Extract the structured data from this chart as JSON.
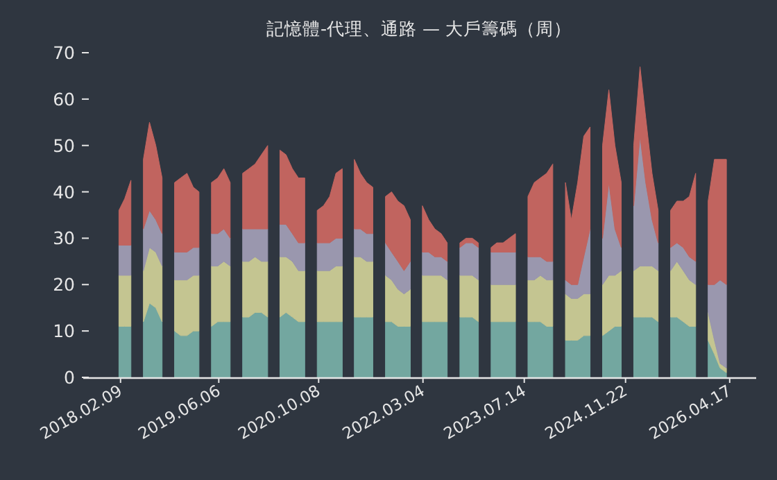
{
  "chart_data": {
    "type": "area",
    "stacked": true,
    "title": "記憶體-代理、通路 — 大戶籌碼（周）",
    "x": [
      "2018-02",
      "2018-03",
      "2018-04",
      "2018-05",
      "2018-06",
      "2018-07",
      "2018-08",
      "2018-09",
      "2018-10",
      "2018-11",
      "2018-12",
      "2019-01",
      "2019-02",
      "2019-03",
      "2019-04",
      "2019-05",
      "2019-06",
      "2019-07",
      "2019-08",
      "2019-09",
      "2019-10",
      "2019-11",
      "2019-12",
      "2020-01",
      "2020-02",
      "2020-03",
      "2020-04",
      "2020-05",
      "2020-06",
      "2020-07",
      "2020-08",
      "2020-09",
      "2020-10",
      "2020-11",
      "2020-12",
      "2021-01",
      "2021-02",
      "2021-03",
      "2021-04",
      "2021-05",
      "2021-06",
      "2021-07",
      "2021-08",
      "2021-09",
      "2021-10",
      "2021-11",
      "2021-12",
      "2022-01",
      "2022-02",
      "2022-03",
      "2022-04",
      "2022-05",
      "2022-06",
      "2022-07",
      "2022-08",
      "2022-09",
      "2022-10",
      "2022-11",
      "2022-12",
      "2023-01",
      "2023-02",
      "2023-03",
      "2023-04",
      "2023-05",
      "2023-06",
      "2023-07",
      "2023-08",
      "2023-09",
      "2023-10",
      "2023-11",
      "2023-12",
      "2024-01",
      "2024-02",
      "2024-03",
      "2024-04",
      "2024-05",
      "2024-06",
      "2024-07",
      "2024-08",
      "2024-09",
      "2024-10",
      "2024-11",
      "2024-12",
      "2025-01",
      "2025-02",
      "2025-03",
      "2025-04",
      "2025-05",
      "2025-06",
      "2025-07",
      "2025-08",
      "2025-09",
      "2025-10",
      "2025-11",
      "2025-12",
      "2026-01",
      "2026-02",
      "2026-03",
      "2026-04"
    ],
    "series": [
      {
        "color": "#73a7a0",
        "values": [
          11,
          11,
          11,
          null,
          12,
          16,
          15,
          12,
          null,
          10,
          9,
          9,
          10,
          10,
          null,
          11,
          12,
          12,
          12,
          null,
          13,
          13,
          14,
          14,
          13,
          null,
          13,
          14,
          13,
          12,
          12,
          null,
          12,
          12,
          12,
          12,
          12,
          null,
          13,
          13,
          13,
          13,
          null,
          12,
          12,
          11,
          11,
          11,
          null,
          12,
          12,
          12,
          12,
          12,
          null,
          13,
          13,
          13,
          12,
          null,
          12,
          12,
          12,
          12,
          12,
          null,
          12,
          12,
          12,
          11,
          11,
          null,
          8,
          8,
          8,
          9,
          9,
          null,
          9,
          10,
          11,
          11,
          null,
          13,
          13,
          13,
          13,
          12,
          null,
          13,
          13,
          12,
          11,
          11,
          null,
          8,
          5,
          2,
          1
        ]
      },
      {
        "color": "#c4c591",
        "values": [
          11,
          11,
          11,
          null,
          11,
          12,
          12,
          12,
          null,
          11,
          12,
          12,
          12,
          12,
          null,
          13,
          12,
          13,
          12,
          null,
          12,
          12,
          12,
          11,
          12,
          null,
          13,
          12,
          12,
          11,
          11,
          null,
          11,
          11,
          11,
          12,
          12,
          null,
          13,
          13,
          12,
          12,
          null,
          10,
          9,
          8,
          7,
          8,
          null,
          10,
          10,
          10,
          10,
          9,
          null,
          9,
          9,
          9,
          9,
          null,
          8,
          8,
          8,
          8,
          8,
          null,
          9,
          9,
          10,
          10,
          10,
          null,
          10,
          9,
          9,
          9,
          9,
          null,
          11,
          12,
          11,
          12,
          null,
          10,
          11,
          11,
          11,
          11,
          null,
          10,
          12,
          11,
          10,
          9,
          null,
          6,
          3,
          1,
          1
        ]
      },
      {
        "color": "#9a97ae",
        "values": [
          6.5,
          6.5,
          6.5,
          null,
          9,
          8,
          7,
          7,
          null,
          6,
          6,
          6,
          6,
          6,
          null,
          7,
          7,
          7,
          6,
          null,
          7,
          7,
          6,
          7,
          7,
          null,
          7,
          7,
          6,
          6,
          6,
          null,
          6,
          6,
          6,
          6,
          6,
          null,
          6,
          6,
          6,
          6,
          null,
          7,
          6,
          6,
          5,
          6,
          null,
          5,
          5,
          4,
          4,
          4,
          null,
          6,
          7,
          7,
          7,
          null,
          7,
          7,
          7,
          7,
          7,
          null,
          5,
          5,
          4,
          4,
          4,
          null,
          3,
          3,
          3,
          8,
          14,
          null,
          10,
          20,
          10,
          5,
          null,
          14,
          28,
          18,
          10,
          6,
          null,
          5,
          4,
          5,
          5,
          5,
          null,
          6,
          12,
          18,
          18
        ]
      },
      {
        "color": "#c1645f",
        "values": [
          7.5,
          10,
          14,
          null,
          15,
          19,
          16,
          12,
          null,
          15,
          16,
          17,
          13,
          12,
          null,
          11,
          12,
          13,
          12,
          null,
          12,
          13,
          14,
          16,
          18,
          null,
          16,
          15,
          14,
          14,
          14,
          null,
          7,
          8,
          10,
          14,
          15,
          null,
          15,
          12,
          11,
          10,
          null,
          10,
          13,
          13,
          14,
          9,
          null,
          10,
          7,
          6,
          5,
          4,
          null,
          1,
          1,
          1,
          1,
          null,
          1,
          2,
          2,
          3,
          4,
          null,
          13,
          16,
          17,
          19,
          21,
          null,
          21,
          14,
          22,
          26,
          22,
          null,
          20,
          20,
          18,
          14,
          null,
          13,
          15,
          14,
          10,
          7,
          null,
          8,
          9,
          10,
          13,
          19,
          null,
          18,
          27,
          26,
          27
        ]
      }
    ],
    "xlim": [
      "2017-08-10",
      "2026-08-25"
    ],
    "xticks": [
      {
        "value": "2018-02-09",
        "label": "2018.02.09"
      },
      {
        "value": "2019-06-06",
        "label": "2019.06.06"
      },
      {
        "value": "2020-10-08",
        "label": "2020.10.08"
      },
      {
        "value": "2022-03-04",
        "label": "2022.03.04"
      },
      {
        "value": "2023-07-14",
        "label": "2023.07.14"
      },
      {
        "value": "2024-11-22",
        "label": "2024.11.22"
      },
      {
        "value": "2026-04-17",
        "label": "2026.04.17"
      }
    ],
    "ylim": [
      0,
      70
    ],
    "yticks": [
      0,
      10,
      20,
      30,
      40,
      50,
      60,
      70
    ]
  }
}
